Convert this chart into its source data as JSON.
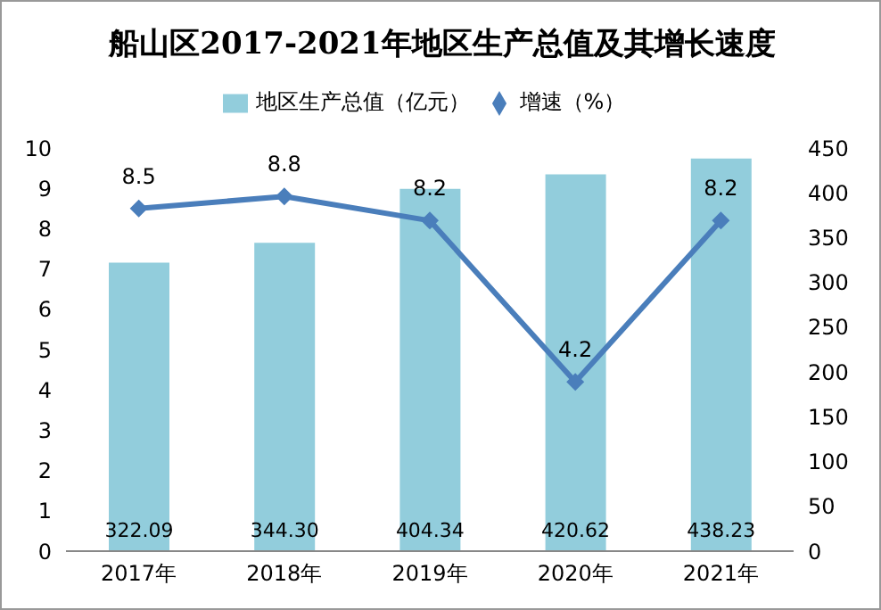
{
  "chart_data": {
    "type": "bar",
    "title": "船山区2017-2021年地区生产总值及其增长速度",
    "categories": [
      "2017年",
      "2018年",
      "2019年",
      "2020年",
      "2021年"
    ],
    "series": [
      {
        "name": "地区生产总值（亿元）",
        "color": "#92cddc",
        "axis": "y2",
        "values": [
          322.09,
          344.3,
          404.34,
          420.62,
          438.23
        ],
        "value_labels": [
          "322.09",
          "344.30",
          "404.34",
          "420.62",
          "438.23"
        ]
      },
      {
        "name": "增速（%）",
        "type": "line",
        "color": "#4a7ebb",
        "axis": "y",
        "marker": "diamond",
        "values": [
          8.5,
          8.8,
          8.2,
          4.2,
          8.2
        ],
        "value_labels": [
          "8.5",
          "8.8",
          "8.2",
          "4.2",
          "8.2"
        ]
      }
    ],
    "ylim": [
      0,
      10
    ],
    "yticks": [
      0,
      1,
      2,
      3,
      4,
      5,
      6,
      7,
      8,
      9,
      10
    ],
    "y2lim": [
      0,
      450
    ],
    "y2ticks": [
      0,
      50,
      100,
      150,
      200,
      250,
      300,
      350,
      400,
      450
    ],
    "legend": "top",
    "grid": false
  }
}
